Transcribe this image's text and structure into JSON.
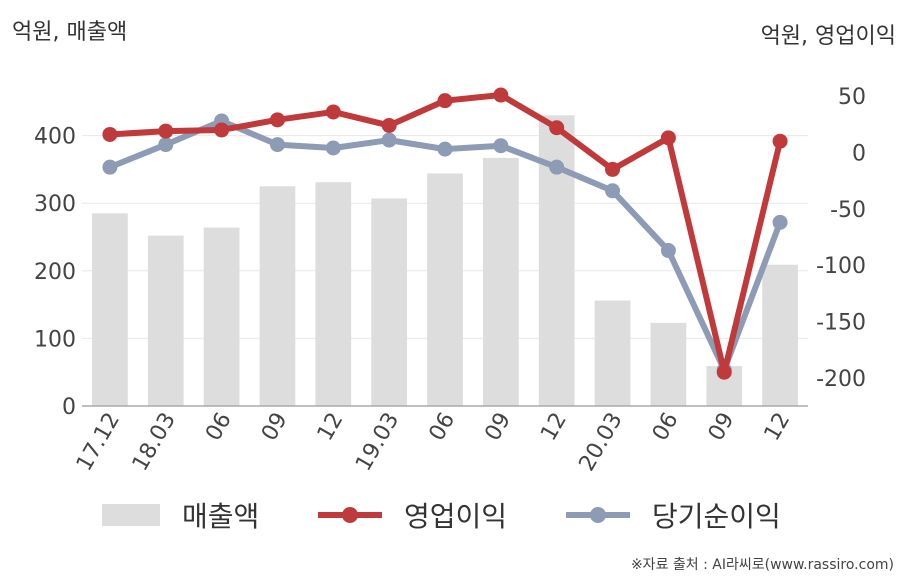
{
  "titles": {
    "left_axis": "억원, 매출액",
    "right_axis": "억원, 영업이익",
    "source": "※자료 출처 : AI라씨로(www.rassiro.com)"
  },
  "chart_data": {
    "type": "bar",
    "categories": [
      "17.12",
      "18.03",
      "06",
      "09",
      "12",
      "19.03",
      "06",
      "09",
      "12",
      "20.03",
      "06",
      "09",
      "12"
    ],
    "y_left": {
      "ticks": [
        0,
        100,
        200,
        300,
        400
      ],
      "range": [
        0,
        500
      ]
    },
    "y_right": {
      "ticks": [
        50,
        0,
        -50,
        -100,
        -150,
        -200
      ],
      "range": [
        -225,
        75
      ]
    },
    "grid": true,
    "legend_position": "bottom",
    "series": [
      {
        "name": "매출액",
        "type": "bar",
        "axis": "left",
        "color": "#dddddd",
        "values": [
          285,
          252,
          264,
          325,
          331,
          307,
          344,
          367,
          430,
          156,
          123,
          59,
          209
        ]
      },
      {
        "name": "영업이익",
        "type": "line",
        "axis": "right",
        "color": "#c0393b",
        "values": [
          16,
          19,
          20,
          29,
          36,
          24,
          46,
          51,
          22,
          -15,
          13,
          -195,
          10
        ]
      },
      {
        "name": "당기순이익",
        "type": "line",
        "axis": "right",
        "color": "#8e9bb5",
        "values": [
          -13,
          7,
          28,
          7,
          4,
          11,
          3,
          6,
          -13,
          -34,
          -87,
          -193,
          -62
        ]
      }
    ]
  }
}
